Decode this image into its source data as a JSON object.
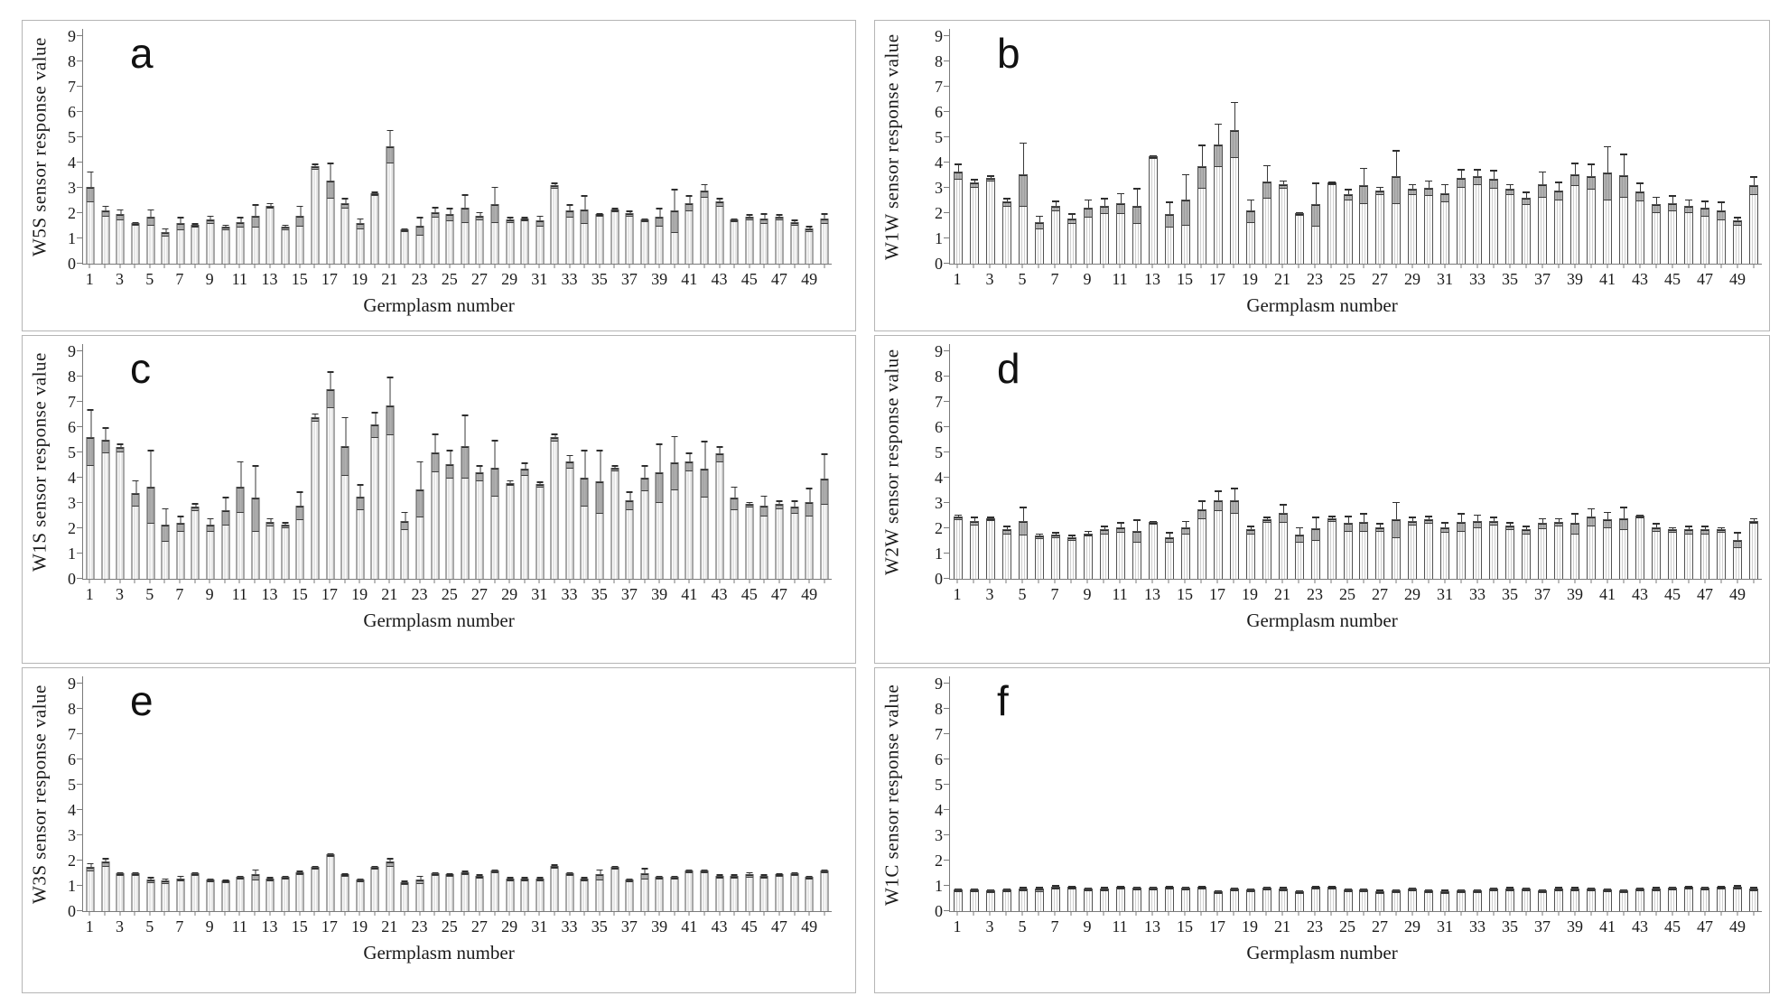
{
  "figure": {
    "xlabel": "Germplasm number",
    "n_bars": 50
  },
  "colors": {
    "bar_fill": "#fdfdfd",
    "bar_stripe": "#d0d0d0",
    "bar_border": "#525252",
    "error_band": "#7d7d7d",
    "whisker": "#3a3a3a",
    "axis": "#7a7a7a",
    "panel_border": "#b5b5b5",
    "text": "#1a1a1a"
  },
  "chart_data": [
    {
      "type": "bar",
      "panel_label": "a",
      "ylabel": "W5S sensor response value",
      "xlabel": "Germplasm number",
      "ylim": [
        0,
        9
      ],
      "yticks": [
        0,
        1,
        2,
        3,
        4,
        5,
        6,
        7,
        8,
        9
      ],
      "grid": false,
      "legend": "none",
      "x": "germplasm 1-50",
      "xtick_labels": [
        "1",
        "3",
        "5",
        "7",
        "9",
        "11",
        "13",
        "15",
        "17",
        "19",
        "21",
        "23",
        "25",
        "27",
        "29",
        "31",
        "33",
        "35",
        "37",
        "39",
        "41",
        "43",
        "45",
        "47",
        "49"
      ],
      "values": [
        3.05,
        2.1,
        1.95,
        1.6,
        1.85,
        1.25,
        1.6,
        1.55,
        1.75,
        1.45,
        1.65,
        1.9,
        2.3,
        1.45,
        1.9,
        3.85,
        3.3,
        2.4,
        1.6,
        2.8,
        4.65,
        1.35,
        1.5,
        2.05,
        1.95,
        2.2,
        1.9,
        2.35,
        1.75,
        1.8,
        1.7,
        3.1,
        2.1,
        2.15,
        1.95,
        2.15,
        2.0,
        1.75,
        1.85,
        2.1,
        2.4,
        2.9,
        2.45,
        1.75,
        1.85,
        1.8,
        1.85,
        1.65,
        1.4,
        1.8
      ],
      "errors": [
        0.6,
        0.2,
        0.2,
        0.05,
        0.3,
        0.15,
        0.25,
        0.05,
        0.15,
        0.1,
        0.2,
        0.45,
        0.1,
        0.1,
        0.4,
        0.1,
        0.7,
        0.2,
        0.2,
        0.05,
        0.65,
        0.05,
        0.35,
        0.2,
        0.25,
        0.55,
        0.15,
        0.7,
        0.1,
        0.05,
        0.2,
        0.1,
        0.25,
        0.55,
        0.05,
        0.05,
        0.1,
        0.05,
        0.35,
        0.85,
        0.3,
        0.25,
        0.15,
        0.05,
        0.1,
        0.2,
        0.1,
        0.1,
        0.1,
        0.2
      ]
    },
    {
      "type": "bar",
      "panel_label": "b",
      "ylabel": "W1W sensor response value",
      "xlabel": "Germplasm number",
      "ylim": [
        0,
        9
      ],
      "yticks": [
        0,
        1,
        2,
        3,
        4,
        5,
        6,
        7,
        8,
        9
      ],
      "grid": false,
      "legend": "none",
      "x": "germplasm 1-50",
      "xtick_labels": [
        "1",
        "3",
        "5",
        "7",
        "9",
        "11",
        "13",
        "15",
        "17",
        "19",
        "21",
        "23",
        "25",
        "27",
        "29",
        "31",
        "33",
        "35",
        "37",
        "39",
        "41",
        "43",
        "45",
        "47",
        "49"
      ],
      "values": [
        3.65,
        3.2,
        3.4,
        2.45,
        3.55,
        1.65,
        2.3,
        1.8,
        2.2,
        2.3,
        2.4,
        2.3,
        4.25,
        1.95,
        2.55,
        3.85,
        4.7,
        5.3,
        2.1,
        3.25,
        3.15,
        2.0,
        2.35,
        3.2,
        2.75,
        3.1,
        2.9,
        3.45,
        2.95,
        3.0,
        2.8,
        3.4,
        3.45,
        3.35,
        2.95,
        2.6,
        3.15,
        2.9,
        3.55,
        3.45,
        3.6,
        3.5,
        2.85,
        2.35,
        2.4,
        2.3,
        2.2,
        2.1,
        1.7,
        3.1
      ],
      "errors": [
        0.3,
        0.15,
        0.1,
        0.15,
        1.25,
        0.25,
        0.2,
        0.2,
        0.35,
        0.3,
        0.4,
        0.7,
        0.05,
        0.5,
        1.0,
        0.85,
        0.85,
        1.1,
        0.45,
        0.65,
        0.15,
        0.05,
        0.85,
        0.05,
        0.2,
        0.7,
        0.15,
        1.05,
        0.2,
        0.3,
        0.35,
        0.35,
        0.3,
        0.35,
        0.2,
        0.25,
        0.5,
        0.35,
        0.45,
        0.5,
        1.05,
        0.85,
        0.35,
        0.3,
        0.3,
        0.25,
        0.3,
        0.35,
        0.15,
        0.35
      ]
    },
    {
      "type": "bar",
      "panel_label": "c",
      "ylabel": "W1S sensor response value",
      "xlabel": "Germplasm number",
      "ylim": [
        0,
        9
      ],
      "yticks": [
        0,
        1,
        2,
        3,
        4,
        5,
        6,
        7,
        8,
        9
      ],
      "grid": false,
      "legend": "none",
      "x": "germplasm 1-50",
      "xtick_labels": [
        "1",
        "3",
        "5",
        "7",
        "9",
        "11",
        "13",
        "15",
        "17",
        "19",
        "21",
        "23",
        "25",
        "27",
        "29",
        "31",
        "33",
        "35",
        "37",
        "39",
        "41",
        "43",
        "45",
        "47",
        "49"
      ],
      "values": [
        5.6,
        5.5,
        5.2,
        3.4,
        3.65,
        2.15,
        2.2,
        2.85,
        2.15,
        2.7,
        3.65,
        3.2,
        2.25,
        2.15,
        2.9,
        6.4,
        7.5,
        5.25,
        3.25,
        6.1,
        6.85,
        2.3,
        3.55,
        5.0,
        4.55,
        5.25,
        4.2,
        4.4,
        3.8,
        4.35,
        3.75,
        5.6,
        4.65,
        4.0,
        3.85,
        4.4,
        3.1,
        4.0,
        4.2,
        4.6,
        4.65,
        4.35,
        4.95,
        3.2,
        2.95,
        2.9,
        2.95,
        2.85,
        3.05,
        3.95
      ],
      "errors": [
        1.1,
        0.5,
        0.15,
        0.5,
        1.45,
        0.65,
        0.3,
        0.15,
        0.25,
        0.55,
        1.0,
        1.3,
        0.15,
        0.1,
        0.55,
        0.15,
        0.7,
        1.15,
        0.5,
        0.5,
        1.15,
        0.35,
        1.1,
        0.75,
        0.55,
        1.25,
        0.3,
        1.1,
        0.1,
        0.25,
        0.1,
        0.15,
        0.25,
        1.1,
        1.25,
        0.1,
        0.35,
        0.5,
        1.15,
        1.05,
        0.35,
        1.1,
        0.3,
        0.45,
        0.1,
        0.4,
        0.15,
        0.25,
        0.55,
        1.0
      ]
    },
    {
      "type": "bar",
      "panel_label": "d",
      "ylabel": "W2W sensor response value",
      "xlabel": "Germplasm number",
      "ylim": [
        0,
        9
      ],
      "yticks": [
        0,
        1,
        2,
        3,
        4,
        5,
        6,
        7,
        8,
        9
      ],
      "grid": false,
      "legend": "none",
      "x": "germplasm 1-50",
      "xtick_labels": [
        "1",
        "3",
        "5",
        "7",
        "9",
        "11",
        "13",
        "15",
        "17",
        "19",
        "21",
        "23",
        "25",
        "27",
        "29",
        "31",
        "33",
        "35",
        "37",
        "39",
        "41",
        "43",
        "45",
        "47",
        "49"
      ],
      "values": [
        2.45,
        2.3,
        2.4,
        1.95,
        2.3,
        1.7,
        1.75,
        1.65,
        1.8,
        1.95,
        2.05,
        1.9,
        2.25,
        1.65,
        2.05,
        2.75,
        3.1,
        3.1,
        1.95,
        2.35,
        2.6,
        1.75,
        2.0,
        2.4,
        2.2,
        2.25,
        2.05,
        2.35,
        2.3,
        2.35,
        2.05,
        2.25,
        2.3,
        2.3,
        2.1,
        1.95,
        2.2,
        2.25,
        2.2,
        2.45,
        2.35,
        2.4,
        2.5,
        2.05,
        1.95,
        1.95,
        1.95,
        1.95,
        1.55,
        2.3
      ],
      "errors": [
        0.1,
        0.15,
        0.05,
        0.15,
        0.55,
        0.1,
        0.1,
        0.1,
        0.1,
        0.15,
        0.2,
        0.45,
        0.05,
        0.2,
        0.25,
        0.35,
        0.4,
        0.5,
        0.15,
        0.1,
        0.35,
        0.3,
        0.45,
        0.1,
        0.3,
        0.35,
        0.15,
        0.7,
        0.15,
        0.15,
        0.2,
        0.35,
        0.25,
        0.15,
        0.15,
        0.15,
        0.2,
        0.15,
        0.4,
        0.35,
        0.3,
        0.45,
        0.05,
        0.15,
        0.1,
        0.15,
        0.15,
        0.1,
        0.3,
        0.1
      ]
    },
    {
      "type": "bar",
      "panel_label": "e",
      "ylabel": "W3S sensor response value",
      "xlabel": "Germplasm number",
      "ylim": [
        0,
        9
      ],
      "yticks": [
        0,
        1,
        2,
        3,
        4,
        5,
        6,
        7,
        8,
        9
      ],
      "grid": false,
      "legend": "none",
      "x": "germplasm 1-50",
      "xtick_labels": [
        "1",
        "3",
        "5",
        "7",
        "9",
        "11",
        "13",
        "15",
        "17",
        "19",
        "21",
        "23",
        "25",
        "27",
        "29",
        "31",
        "33",
        "35",
        "37",
        "39",
        "41",
        "43",
        "45",
        "47",
        "49"
      ],
      "values": [
        1.75,
        1.95,
        1.5,
        1.5,
        1.25,
        1.2,
        1.3,
        1.5,
        1.25,
        1.2,
        1.35,
        1.45,
        1.3,
        1.35,
        1.55,
        1.75,
        2.25,
        1.45,
        1.25,
        1.75,
        1.95,
        1.15,
        1.25,
        1.5,
        1.45,
        1.55,
        1.4,
        1.6,
        1.3,
        1.3,
        1.3,
        1.8,
        1.5,
        1.3,
        1.45,
        1.75,
        1.25,
        1.5,
        1.35,
        1.35,
        1.6,
        1.6,
        1.4,
        1.4,
        1.45,
        1.4,
        1.45,
        1.5,
        1.35,
        1.6
      ],
      "errors": [
        0.15,
        0.15,
        0.05,
        0.05,
        0.1,
        0.1,
        0.1,
        0.05,
        0.05,
        0.05,
        0.05,
        0.2,
        0.05,
        0.05,
        0.05,
        0.05,
        0.05,
        0.05,
        0.05,
        0.05,
        0.15,
        0.05,
        0.15,
        0.05,
        0.05,
        0.05,
        0.05,
        0.05,
        0.05,
        0.05,
        0.05,
        0.05,
        0.05,
        0.05,
        0.2,
        0.05,
        0.05,
        0.2,
        0.05,
        0.05,
        0.05,
        0.05,
        0.05,
        0.05,
        0.1,
        0.05,
        0.05,
        0.05,
        0.05,
        0.05
      ]
    },
    {
      "type": "bar",
      "panel_label": "f",
      "ylabel": "W1C sensor response value",
      "xlabel": "Germplasm number",
      "ylim": [
        0,
        9
      ],
      "yticks": [
        0,
        1,
        2,
        3,
        4,
        5,
        6,
        7,
        8,
        9
      ],
      "grid": false,
      "legend": "none",
      "x": "germplasm 1-50",
      "xtick_labels": [
        "1",
        "3",
        "5",
        "7",
        "9",
        "11",
        "13",
        "15",
        "17",
        "19",
        "21",
        "23",
        "25",
        "27",
        "29",
        "31",
        "33",
        "35",
        "37",
        "39",
        "41",
        "43",
        "45",
        "47",
        "49"
      ],
      "values": [
        0.85,
        0.85,
        0.82,
        0.85,
        0.9,
        0.88,
        0.97,
        0.95,
        0.88,
        0.9,
        0.95,
        0.93,
        0.92,
        0.95,
        0.93,
        0.95,
        0.78,
        0.88,
        0.85,
        0.92,
        0.9,
        0.78,
        0.95,
        0.95,
        0.85,
        0.85,
        0.8,
        0.82,
        0.88,
        0.82,
        0.8,
        0.82,
        0.82,
        0.88,
        0.9,
        0.88,
        0.82,
        0.9,
        0.9,
        0.88,
        0.85,
        0.82,
        0.88,
        0.9,
        0.92,
        0.95,
        0.92,
        0.95,
        0.98,
        0.9
      ],
      "errors": [
        0.05,
        0.05,
        0.05,
        0.05,
        0.05,
        0.08,
        0.05,
        0.05,
        0.05,
        0.05,
        0.05,
        0.05,
        0.05,
        0.05,
        0.05,
        0.05,
        0.05,
        0.05,
        0.05,
        0.05,
        0.05,
        0.05,
        0.05,
        0.05,
        0.05,
        0.05,
        0.05,
        0.05,
        0.05,
        0.05,
        0.05,
        0.05,
        0.05,
        0.05,
        0.05,
        0.05,
        0.05,
        0.05,
        0.05,
        0.05,
        0.05,
        0.05,
        0.05,
        0.05,
        0.05,
        0.05,
        0.05,
        0.05,
        0.05,
        0.05
      ]
    }
  ]
}
